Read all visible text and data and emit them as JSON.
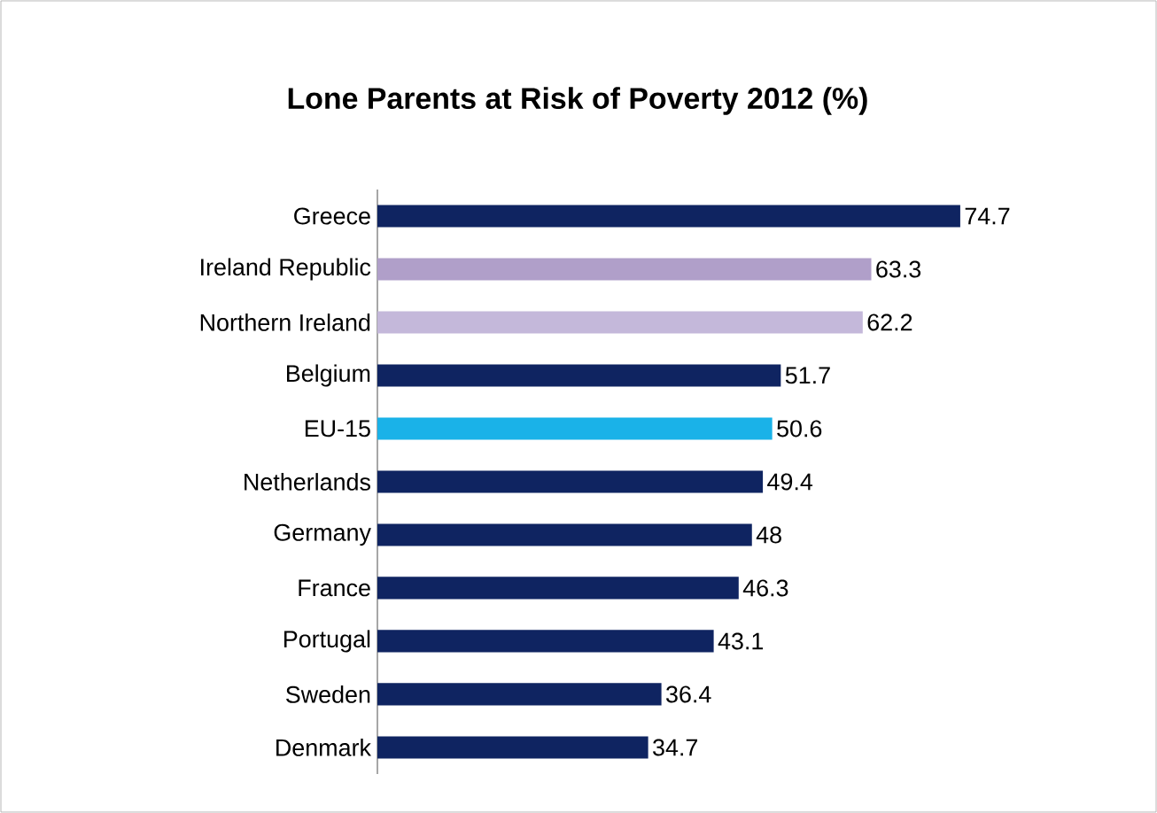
{
  "chart_data": {
    "type": "bar",
    "orientation": "horizontal",
    "title": "Lone Parents at Risk of Poverty 2012 (%)",
    "categories": [
      "Greece",
      "Ireland Republic",
      "Northern Ireland",
      "Belgium",
      "EU-15",
      "Netherlands",
      "Germany",
      "France",
      "Portugal",
      "Sweden",
      "Denmark"
    ],
    "values": [
      74.7,
      63.3,
      62.2,
      51.7,
      50.6,
      49.4,
      48,
      46.3,
      43.1,
      36.4,
      34.7
    ],
    "colors": [
      "#0f2461",
      "#b09fc9",
      "#c4b8da",
      "#0f2461",
      "#1ab2e8",
      "#0f2461",
      "#0f2461",
      "#0f2461",
      "#0f2461",
      "#0f2461",
      "#0f2461"
    ],
    "data_labels": true,
    "tick_labels": "y"
  }
}
